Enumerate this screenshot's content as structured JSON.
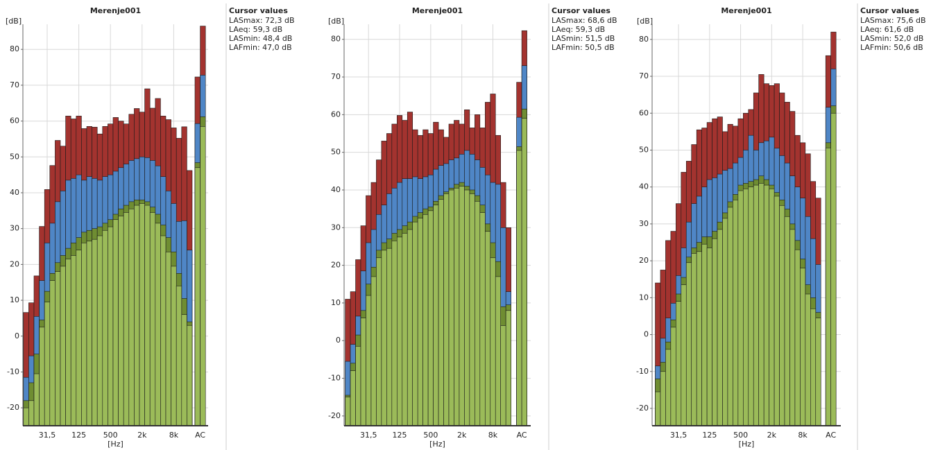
{
  "chart_data": [
    {
      "type": "bar",
      "title": "Merenje001",
      "y_label": "[dB]",
      "x_label": "[Hz]",
      "ac_label": "AC",
      "legend_title": "Cursor values",
      "categories": [
        null,
        null,
        null,
        null,
        "31,5",
        null,
        null,
        null,
        null,
        null,
        "125",
        null,
        null,
        null,
        null,
        null,
        "500",
        null,
        null,
        null,
        null,
        null,
        "2k",
        null,
        null,
        null,
        null,
        null,
        "8k",
        null,
        null,
        null,
        null,
        null
      ],
      "ylim": [
        -25,
        87
      ],
      "yticks": [
        -20,
        -10,
        0,
        10,
        20,
        30,
        40,
        50,
        60,
        70,
        80
      ],
      "grid": true,
      "series": [
        {
          "name": "LASmax: 72,3 dB",
          "color": "#a3332f",
          "values": [
            6.6,
            9.3,
            16.8,
            30.6,
            40.9,
            47.6,
            54.6,
            53.0,
            61.4,
            60.6,
            61.4,
            57.9,
            58.5,
            58.3,
            56.4,
            58.5,
            59.2,
            61.0,
            60.0,
            59.2,
            61.9,
            63.5,
            62.5,
            69.0,
            63.6,
            66.3,
            61.4,
            60.4,
            58.1,
            55.2,
            58.4,
            46.2,
            72.3,
            86.5
          ]
        },
        {
          "name": "LAeq: 59,3 dB",
          "color": "#4f86c6",
          "values": [
            -11.5,
            -5.5,
            5.5,
            15.5,
            26.0,
            31.5,
            37.5,
            40.5,
            43.5,
            44.0,
            45.0,
            43.5,
            44.5,
            44.0,
            43.5,
            44.5,
            45.0,
            46.0,
            47.0,
            48.0,
            49.0,
            49.5,
            50.0,
            49.8,
            49.0,
            47.5,
            44.5,
            40.5,
            37.0,
            32.0,
            32.2,
            24.0,
            59.3,
            72.8
          ]
        },
        {
          "name": "LASmin: 48,4 dB",
          "color": "#6f8d32",
          "values": [
            -18,
            -13,
            -5,
            4.5,
            12.5,
            17.5,
            20.5,
            22.5,
            24.5,
            26,
            27.5,
            29,
            29.5,
            30,
            30.5,
            31.5,
            32.5,
            34,
            35.5,
            36.5,
            37.5,
            38,
            38,
            37.5,
            36,
            34,
            31,
            27.5,
            23.5,
            17.5,
            10.5,
            4,
            48.4,
            61.2
          ]
        },
        {
          "name": "LAFmin: 47,0 dB",
          "color": "#9bbb59",
          "values": [
            -20,
            -18,
            -10.5,
            2.5,
            9.5,
            15.5,
            18,
            19.5,
            21.5,
            22.5,
            24,
            26,
            26.5,
            27,
            28,
            29.5,
            30.5,
            32.5,
            33.5,
            34.5,
            35.5,
            36.5,
            37,
            36.5,
            34.5,
            31.5,
            28,
            23.5,
            19.5,
            14,
            6,
            3,
            47,
            58.5
          ]
        }
      ]
    },
    {
      "type": "bar",
      "title": "Merenje001",
      "y_label": "[dB]",
      "x_label": "[Hz]",
      "ac_label": "AC",
      "legend_title": "Cursor values",
      "categories": [
        null,
        null,
        null,
        null,
        "31,5",
        null,
        null,
        null,
        null,
        null,
        "125",
        null,
        null,
        null,
        null,
        null,
        "500",
        null,
        null,
        null,
        null,
        null,
        "2k",
        null,
        null,
        null,
        null,
        null,
        "8k",
        null,
        null,
        null,
        null,
        null
      ],
      "ylim": [
        -22.6,
        84
      ],
      "yticks": [
        -20,
        -10,
        0,
        10,
        20,
        30,
        40,
        50,
        60,
        70,
        80
      ],
      "grid": true,
      "series": [
        {
          "name": "LASmax: 68,6 dB",
          "color": "#a3332f",
          "values": [
            11,
            13,
            21.5,
            30.5,
            38.5,
            42,
            48,
            53,
            55,
            57.5,
            59.8,
            58.5,
            60.7,
            56,
            54.5,
            56,
            55,
            58,
            56,
            54,
            57.5,
            58.5,
            57.5,
            61.3,
            56.5,
            60,
            56.5,
            63.3,
            65.5,
            54.5,
            42,
            30,
            68.6,
            82.3
          ]
        },
        {
          "name": "LAeq: 59,3 dB",
          "color": "#4f86c6",
          "values": [
            -5.5,
            -1,
            6.5,
            18.5,
            26,
            29.5,
            33.5,
            36,
            39,
            40.5,
            42,
            43,
            43,
            43.5,
            43,
            43.5,
            44,
            45.5,
            46.5,
            47,
            48,
            48.5,
            49.5,
            50.5,
            49.5,
            48,
            46,
            44,
            42,
            41.5,
            30,
            13,
            59.3,
            73
          ]
        },
        {
          "name": "LASmin: 51,5 dB",
          "color": "#6f8d32",
          "values": [
            -14.5,
            -6,
            1.5,
            8,
            15,
            19.5,
            24,
            26,
            27,
            28.5,
            29.5,
            30.5,
            31.5,
            33,
            34,
            35,
            35.5,
            37,
            38.5,
            39.5,
            40.5,
            41.5,
            42,
            41,
            40,
            38.5,
            36,
            31,
            26,
            21,
            9,
            9.5,
            51.5,
            61.5
          ]
        },
        {
          "name": "LAFmin: 50,5 dB",
          "color": "#9bbb59",
          "values": [
            -15,
            -8,
            -1.5,
            6,
            12,
            17,
            22,
            24,
            24.5,
            26.5,
            27.5,
            28.5,
            29.5,
            31.5,
            32.5,
            33.5,
            34.5,
            36,
            37.5,
            39,
            40,
            40.5,
            41,
            40,
            39,
            37,
            34,
            29,
            22,
            17,
            4,
            8,
            50.5,
            59
          ]
        }
      ]
    },
    {
      "type": "bar",
      "title": "Merenje001",
      "y_label": "[dB]",
      "x_label": "[Hz]",
      "ac_label": "AC",
      "legend_title": "Cursor values",
      "categories": [
        null,
        null,
        null,
        null,
        "31,5",
        null,
        null,
        null,
        null,
        null,
        "125",
        null,
        null,
        null,
        null,
        null,
        "500",
        null,
        null,
        null,
        null,
        null,
        "2k",
        null,
        null,
        null,
        null,
        null,
        "8k",
        null,
        null,
        null,
        null,
        null
      ],
      "ylim": [
        -24.7,
        84.1
      ],
      "yticks": [
        -20,
        -10,
        0,
        10,
        20,
        30,
        40,
        50,
        60,
        70,
        80
      ],
      "grid": true,
      "series": [
        {
          "name": "LASmax: 75,6 dB",
          "color": "#a3332f",
          "values": [
            14,
            17.5,
            25.5,
            28,
            35.5,
            44,
            47,
            51.5,
            55.5,
            56,
            57.5,
            58.5,
            59,
            55,
            57,
            56.5,
            58.5,
            60,
            61,
            65.5,
            70.5,
            68,
            67.5,
            68,
            65.5,
            63,
            60.5,
            54,
            52,
            49,
            41.5,
            37,
            75.6,
            82
          ]
        },
        {
          "name": "LAeq: 61,6 dB",
          "color": "#4f86c6",
          "values": [
            -8.5,
            -1,
            4.5,
            8.5,
            16,
            23.5,
            30.5,
            35.5,
            37.5,
            40,
            42,
            42.5,
            43.5,
            44.5,
            45,
            46.5,
            48,
            50,
            54,
            50,
            52,
            52.5,
            53.5,
            50.5,
            48.5,
            46.5,
            43,
            40,
            37,
            32,
            26,
            19,
            61.6,
            72
          ]
        },
        {
          "name": "LASmin: 52,0 dB",
          "color": "#6f8d32",
          "values": [
            -12,
            -7.5,
            -2,
            4,
            11,
            15.5,
            21,
            23.5,
            25,
            26.5,
            26.5,
            28,
            30.5,
            33,
            36,
            38,
            40.5,
            41,
            41.5,
            42,
            43,
            42,
            40.5,
            38.5,
            36.5,
            34,
            30,
            25.5,
            20.5,
            13.5,
            10,
            6,
            52,
            62
          ]
        },
        {
          "name": "LAFmin: 50,6 dB",
          "color": "#9bbb59",
          "values": [
            -15.5,
            -10,
            -4,
            2,
            9,
            13.5,
            19.5,
            22,
            22.5,
            24.5,
            23.5,
            26,
            28.5,
            31.5,
            34.5,
            36.5,
            39,
            39.5,
            40,
            40.5,
            41,
            40.5,
            39.5,
            37.5,
            35,
            32,
            28.5,
            23,
            18,
            11,
            7,
            4.5,
            50.6,
            60
          ]
        }
      ]
    }
  ]
}
